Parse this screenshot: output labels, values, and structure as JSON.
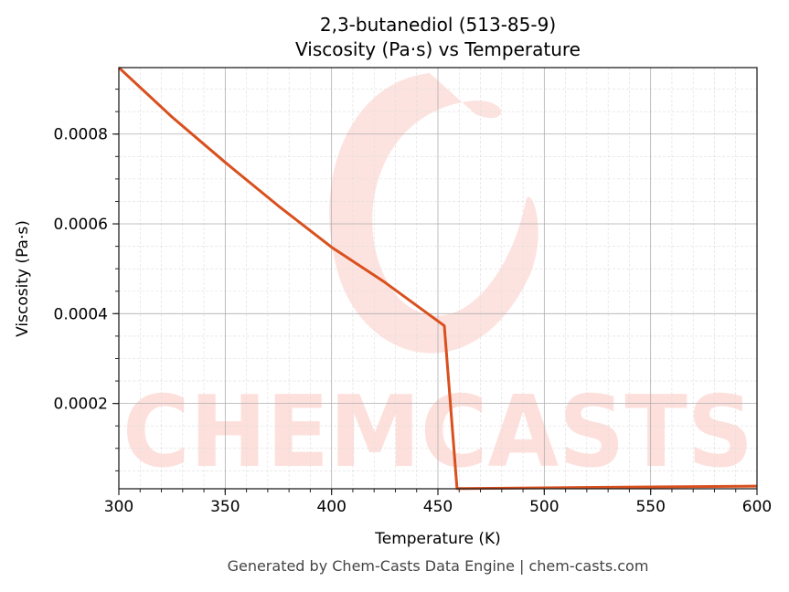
{
  "chart_data": {
    "type": "line",
    "title": "2,3-butanediol (513-85-9)",
    "subtitle": "Viscosity (Pa·s) vs Temperature",
    "xlabel": "Temperature (K)",
    "ylabel": "Viscosity (Pa·s)",
    "xlim": [
      300,
      600
    ],
    "ylim": [
      1e-05,
      0.000948
    ],
    "xticks": [
      300,
      350,
      400,
      450,
      500,
      550,
      600
    ],
    "xtick_labels": [
      "300",
      "350",
      "400",
      "450",
      "500",
      "550",
      "600"
    ],
    "yticks": [
      0.0002,
      0.0004,
      0.0006,
      0.0008
    ],
    "ytick_labels": [
      "0.0002",
      "0.0004",
      "0.0006",
      "0.0008"
    ],
    "grid": true,
    "minor_grid": true,
    "line_color": "#d9501e",
    "series": [
      {
        "x": [
          300,
          325,
          350,
          375,
          400,
          425,
          453,
          459,
          500,
          550,
          600
        ],
        "y": [
          0.000948,
          0.000838,
          0.000737,
          0.00064,
          0.000548,
          0.00047,
          0.000373,
          1.05e-05,
          1.2e-05,
          1.4e-05,
          1.6e-05
        ]
      }
    ]
  },
  "watermark": {
    "text": "CHEMCASTS",
    "color": "#fde0dc"
  },
  "footer": "Generated by Chem-Casts Data Engine | chem-casts.com"
}
